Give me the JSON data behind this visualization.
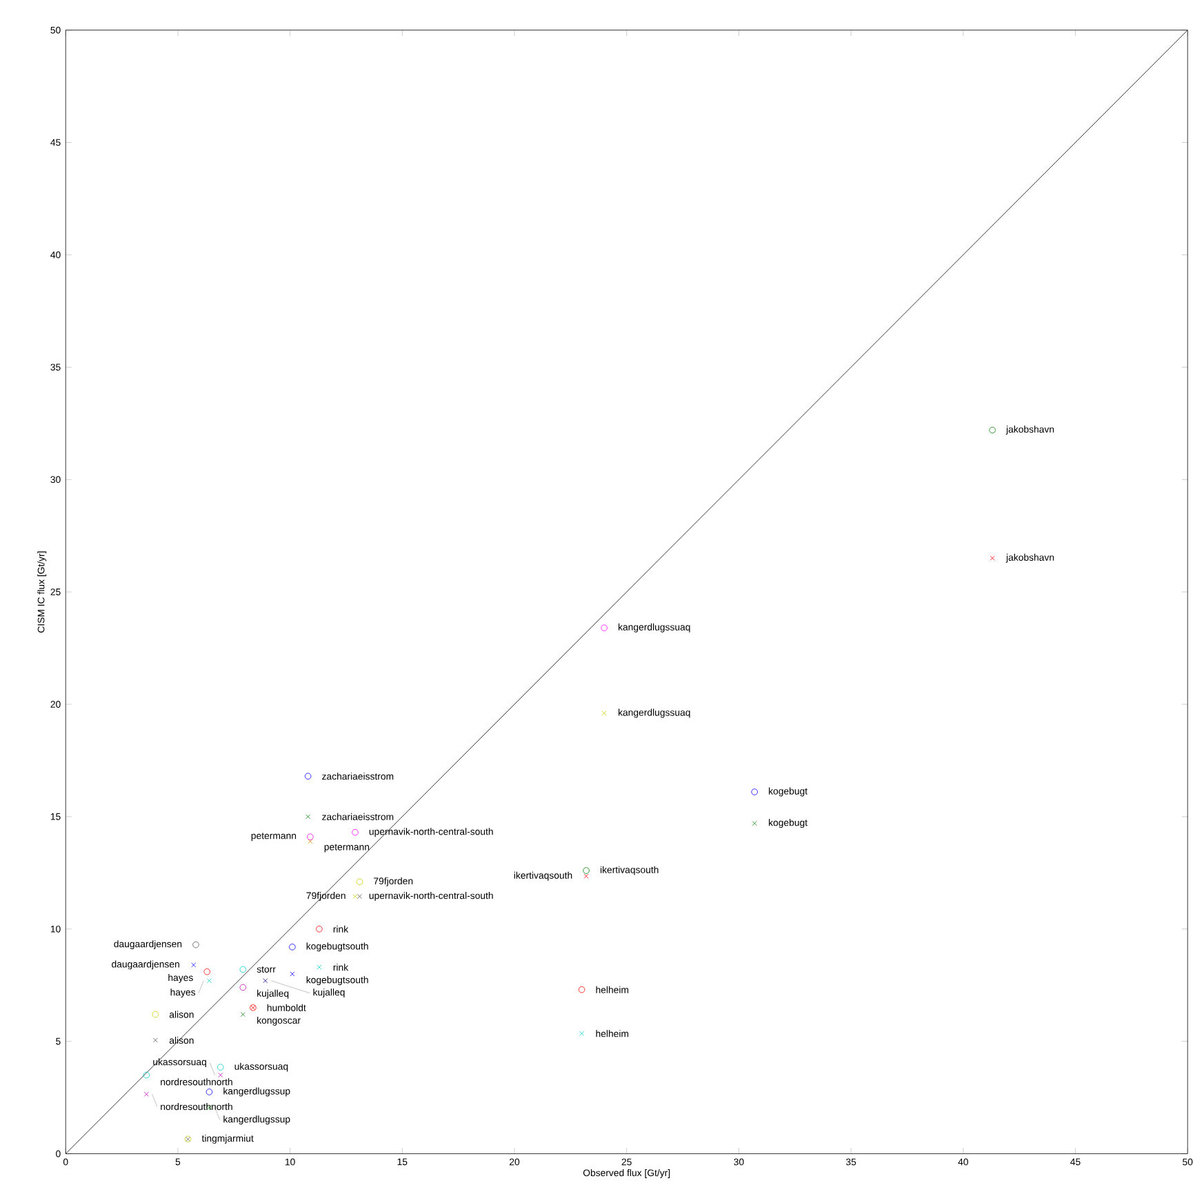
{
  "chart_data": {
    "type": "scatter",
    "xlabel": "Observed flux [Gt/yr]",
    "ylabel": "CISM IC flux [Gt/yr]",
    "xlim": [
      0,
      50
    ],
    "ylim": [
      0,
      50
    ],
    "xticks": [
      0,
      5,
      10,
      15,
      20,
      25,
      30,
      35,
      40,
      45,
      50
    ],
    "yticks": [
      0,
      5,
      10,
      15,
      20,
      25,
      30,
      35,
      40,
      45,
      50
    ],
    "series": [
      {
        "type": "line",
        "color": "#000000",
        "line_style": "solid",
        "marker": "none",
        "x": [
          0,
          50
        ],
        "values": [
          0,
          50
        ]
      },
      {
        "marker": "circle",
        "x": [
          41.3,
          24.0,
          10.8,
          30.7,
          10.9,
          12.9,
          13.1,
          23.2,
          11.3,
          5.8,
          10.1,
          6.3,
          7.9,
          7.9,
          8.35,
          4.0,
          6.9,
          3.6,
          6.4,
          5.45,
          23.0
        ],
        "values": [
          32.2,
          23.4,
          16.8,
          16.1,
          14.1,
          14.3,
          12.1,
          12.6,
          10.0,
          9.3,
          9.2,
          8.1,
          8.2,
          7.4,
          6.5,
          6.2,
          3.85,
          3.5,
          2.75,
          0.65,
          7.3
        ],
        "colors": [
          "#008000",
          "#ff00ff",
          "#0000ff",
          "#0000ff",
          "#ff00ff",
          "#ff00ff",
          "#cccc00",
          "#008000",
          "#ff0000",
          "#555555",
          "#0000ff",
          "#ff0000",
          "#00cccc",
          "#bf00bf",
          "#ff0000",
          "#cccc00",
          "#00cccc",
          "#00cccc",
          "#0000ff",
          "#cccc00",
          "#ff0000"
        ]
      },
      {
        "marker": "cross",
        "x": [
          41.3,
          24.0,
          10.8,
          30.7,
          10.9,
          12.9,
          13.1,
          23.2,
          11.3,
          5.7,
          10.1,
          6.4,
          8.9,
          8.35,
          7.9,
          4.0,
          6.9,
          3.6,
          6.4,
          5.45,
          23.0
        ],
        "values": [
          26.5,
          19.6,
          15.0,
          14.7,
          13.9,
          11.45,
          11.45,
          12.35,
          8.3,
          8.4,
          8.0,
          7.7,
          7.7,
          6.5,
          6.2,
          5.05,
          3.5,
          2.65,
          2.05,
          0.65,
          5.35
        ],
        "colors": [
          "#ff0000",
          "#cccc00",
          "#008000",
          "#008000",
          "#cc8800",
          "#cccc00",
          "#555555",
          "#ff0000",
          "#00cccc",
          "#0000ff",
          "#0000ff",
          "#00cccc",
          "#000080",
          "#ff0000",
          "#008000",
          "#555555",
          "#bf00bf",
          "#bf00bf",
          "#008000",
          "#555555",
          "#00cccc"
        ]
      }
    ],
    "annotations": [
      {
        "text": "jakobshavn",
        "x": 41.3,
        "y": 32.2
      },
      {
        "text": "kangerdlugssuaq",
        "x": 24.0,
        "y": 23.4
      },
      {
        "text": "zachariaeisstrom",
        "x": 10.8,
        "y": 16.8
      },
      {
        "text": "kogebugt",
        "x": 30.7,
        "y": 16.1
      },
      {
        "text": "petermann",
        "x": 10.9,
        "y": 14.1
      },
      {
        "text": "upernavik-north-central-south",
        "x": 12.9,
        "y": 14.3
      },
      {
        "text": "79fjorden",
        "x": 13.1,
        "y": 12.1
      },
      {
        "text": "ikertivaqsouth",
        "x": 23.2,
        "y": 12.6
      },
      {
        "text": "rink",
        "x": 11.3,
        "y": 10.0
      },
      {
        "text": "daugaardjensen",
        "x": 5.8,
        "y": 9.3
      },
      {
        "text": "kogebugtsouth",
        "x": 10.1,
        "y": 9.2
      },
      {
        "text": "hayes",
        "x": 6.3,
        "y": 8.1
      },
      {
        "text": "storr",
        "x": 7.9,
        "y": 8.2
      },
      {
        "text": "kujalleq",
        "x": 7.9,
        "y": 7.4
      },
      {
        "text": "humboldt",
        "x": 8.35,
        "y": 6.5
      },
      {
        "text": "alison",
        "x": 4.0,
        "y": 6.2
      },
      {
        "text": "ukassorsuaq",
        "x": 6.9,
        "y": 3.85
      },
      {
        "text": "nordresouthnorth",
        "x": 3.6,
        "y": 3.5
      },
      {
        "text": "kangerdlugssup",
        "x": 6.4,
        "y": 2.75
      },
      {
        "text": "tingmjarmiut",
        "x": 5.45,
        "y": 0.65
      },
      {
        "text": "helheim",
        "x": 23.0,
        "y": 7.3
      },
      {
        "text": "jakobshavn",
        "x": 41.3,
        "y": 26.5
      },
      {
        "text": "kangerdlugssuaq",
        "x": 24.0,
        "y": 19.6
      },
      {
        "text": "zachariaeisstrom",
        "x": 10.8,
        "y": 15.0
      },
      {
        "text": "kogebugt",
        "x": 30.7,
        "y": 14.7
      },
      {
        "text": "petermann",
        "x": 10.9,
        "y": 13.9
      },
      {
        "text": "upernavik-north-central-south",
        "x": 12.9,
        "y": 11.45
      },
      {
        "text": "79fjorden",
        "x": 13.1,
        "y": 11.45
      },
      {
        "text": "ikertivaqsouth",
        "x": 23.2,
        "y": 12.35
      },
      {
        "text": "rink",
        "x": 11.3,
        "y": 8.3
      },
      {
        "text": "daugaardjensen",
        "x": 5.7,
        "y": 8.4
      },
      {
        "text": "kogebugtsouth",
        "x": 10.1,
        "y": 8.0
      },
      {
        "text": "hayes",
        "x": 6.4,
        "y": 7.7
      },
      {
        "text": "kujalleq",
        "x": 8.9,
        "y": 7.7
      },
      {
        "text": "kongoscar",
        "x": 7.9,
        "y": 6.2
      },
      {
        "text": "alison",
        "x": 4.0,
        "y": 5.05
      },
      {
        "text": "ukassorsuaq",
        "x": 6.9,
        "y": 3.5
      },
      {
        "text": "nordresouthnorth",
        "x": 3.6,
        "y": 2.65
      },
      {
        "text": "kangerdlugssup",
        "x": 6.4,
        "y": 2.05
      },
      {
        "text": "helheim",
        "x": 23.0,
        "y": 5.35
      }
    ]
  }
}
